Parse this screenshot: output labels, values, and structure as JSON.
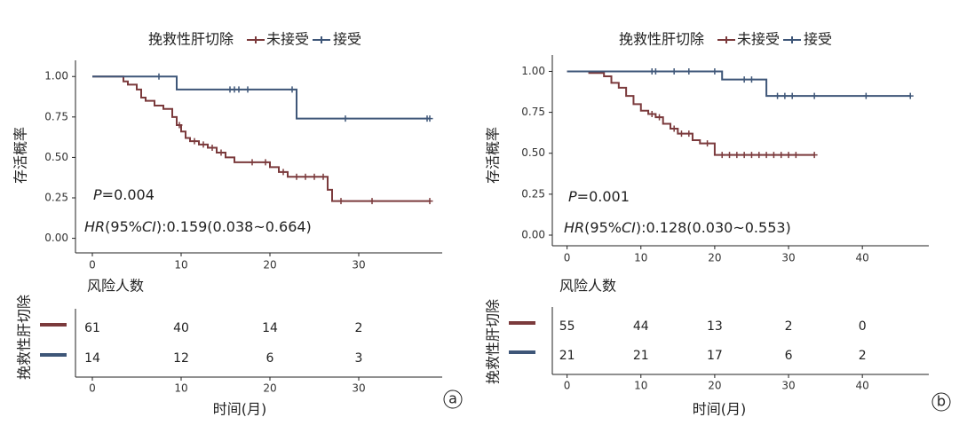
{
  "chart_data": [
    {
      "type": "step",
      "legend_title": "挽救性肝切除",
      "y_label": "存活概率",
      "x_label": "时间(月)",
      "panel_label": "a",
      "p_text": [
        "P",
        "=0.004"
      ],
      "hr_text": [
        "HR",
        "(95%",
        "CI",
        "):0.159(0.038~0.664)"
      ],
      "xlim": [
        -1.9,
        39.4
      ],
      "ylim": [
        -0.09,
        1.1
      ],
      "xticks": [
        0,
        10,
        20,
        30
      ],
      "yticks": [
        {
          "value": 0,
          "label": "0.00"
        },
        {
          "value": 0.25,
          "label": "0.25"
        },
        {
          "value": 0.5,
          "label": "0.50"
        },
        {
          "value": 0.75,
          "label": "0.75"
        },
        {
          "value": 1,
          "label": "1.00"
        }
      ],
      "series": [
        {
          "name": "未接受",
          "color": "#7b3a3c",
          "x": [
            0,
            3.5,
            4,
            5,
            5.5,
            6,
            7,
            8,
            9,
            9.5,
            10,
            10.5,
            11,
            12,
            13,
            14,
            15,
            16,
            20,
            21,
            22,
            26.5,
            27,
            38
          ],
          "values": [
            1,
            0.97,
            0.95,
            0.92,
            0.87,
            0.85,
            0.82,
            0.8,
            0.75,
            0.7,
            0.66,
            0.62,
            0.6,
            0.58,
            0.56,
            0.53,
            0.5,
            0.47,
            0.44,
            0.41,
            0.38,
            0.3,
            0.23,
            0.23
          ],
          "censored": [
            9.8,
            11.5,
            12.5,
            13.5,
            14.5,
            18,
            19.5,
            21.5,
            23,
            24,
            25,
            26,
            28,
            31.5,
            38
          ]
        },
        {
          "name": "接受",
          "color": "#3e5678",
          "x": [
            0,
            9.5,
            23,
            38
          ],
          "values": [
            1,
            0.92,
            0.74,
            0.74
          ],
          "censored": [
            7.5,
            15.5,
            16,
            16.5,
            17.5,
            22.5,
            28.5,
            37.7,
            38
          ]
        }
      ],
      "risk_table": {
        "title": "风险人数",
        "strata_label": "挽救性肝切除",
        "rows": [
          [
            61,
            40,
            14,
            2
          ],
          [
            14,
            12,
            6,
            3
          ]
        ]
      }
    },
    {
      "type": "step",
      "legend_title": "挽救性肝切除",
      "y_label": "存活概率",
      "x_label": "时间(月)",
      "panel_label": "b",
      "p_text": [
        "P",
        "=0.001"
      ],
      "hr_text": [
        "HR",
        "(95%",
        "CI",
        "):0.128(0.030~0.553)"
      ],
      "xlim": [
        -2,
        49
      ],
      "ylim": [
        -0.065,
        1.1
      ],
      "xticks": [
        0,
        10,
        20,
        30,
        40
      ],
      "yticks": [
        {
          "value": 0,
          "label": "0.00"
        },
        {
          "value": 0.25,
          "label": "0.25"
        },
        {
          "value": 0.5,
          "label": "0.50"
        },
        {
          "value": 0.75,
          "label": "0.75"
        },
        {
          "value": 1,
          "label": "1.00"
        }
      ],
      "series": [
        {
          "name": "未接受",
          "color": "#7b3a3c",
          "x": [
            0,
            3,
            5,
            6,
            7,
            8,
            9,
            10,
            11,
            12,
            13,
            14,
            15,
            17,
            18,
            20,
            33.5
          ],
          "values": [
            1,
            0.99,
            0.97,
            0.93,
            0.9,
            0.85,
            0.8,
            0.76,
            0.74,
            0.72,
            0.68,
            0.65,
            0.62,
            0.58,
            0.56,
            0.49,
            0.49
          ],
          "censored": [
            11.5,
            12.5,
            14.5,
            15.5,
            16.5,
            19,
            21,
            22,
            23,
            24,
            25,
            26,
            27,
            28,
            29,
            30,
            31,
            33.5
          ]
        },
        {
          "name": "接受",
          "color": "#3e5678",
          "x": [
            0,
            21,
            27,
            46.5
          ],
          "values": [
            1,
            0.95,
            0.85,
            0.85
          ],
          "censored": [
            11.5,
            12,
            14.5,
            16.5,
            20,
            24,
            25,
            28.5,
            29.5,
            30.5,
            33.5,
            40.5,
            46.5
          ]
        }
      ],
      "risk_table": {
        "title": "风险人数",
        "strata_label": "挽救性肝切除",
        "rows": [
          [
            55,
            44,
            13,
            2,
            0
          ],
          [
            21,
            21,
            17,
            6,
            2
          ]
        ]
      }
    }
  ]
}
